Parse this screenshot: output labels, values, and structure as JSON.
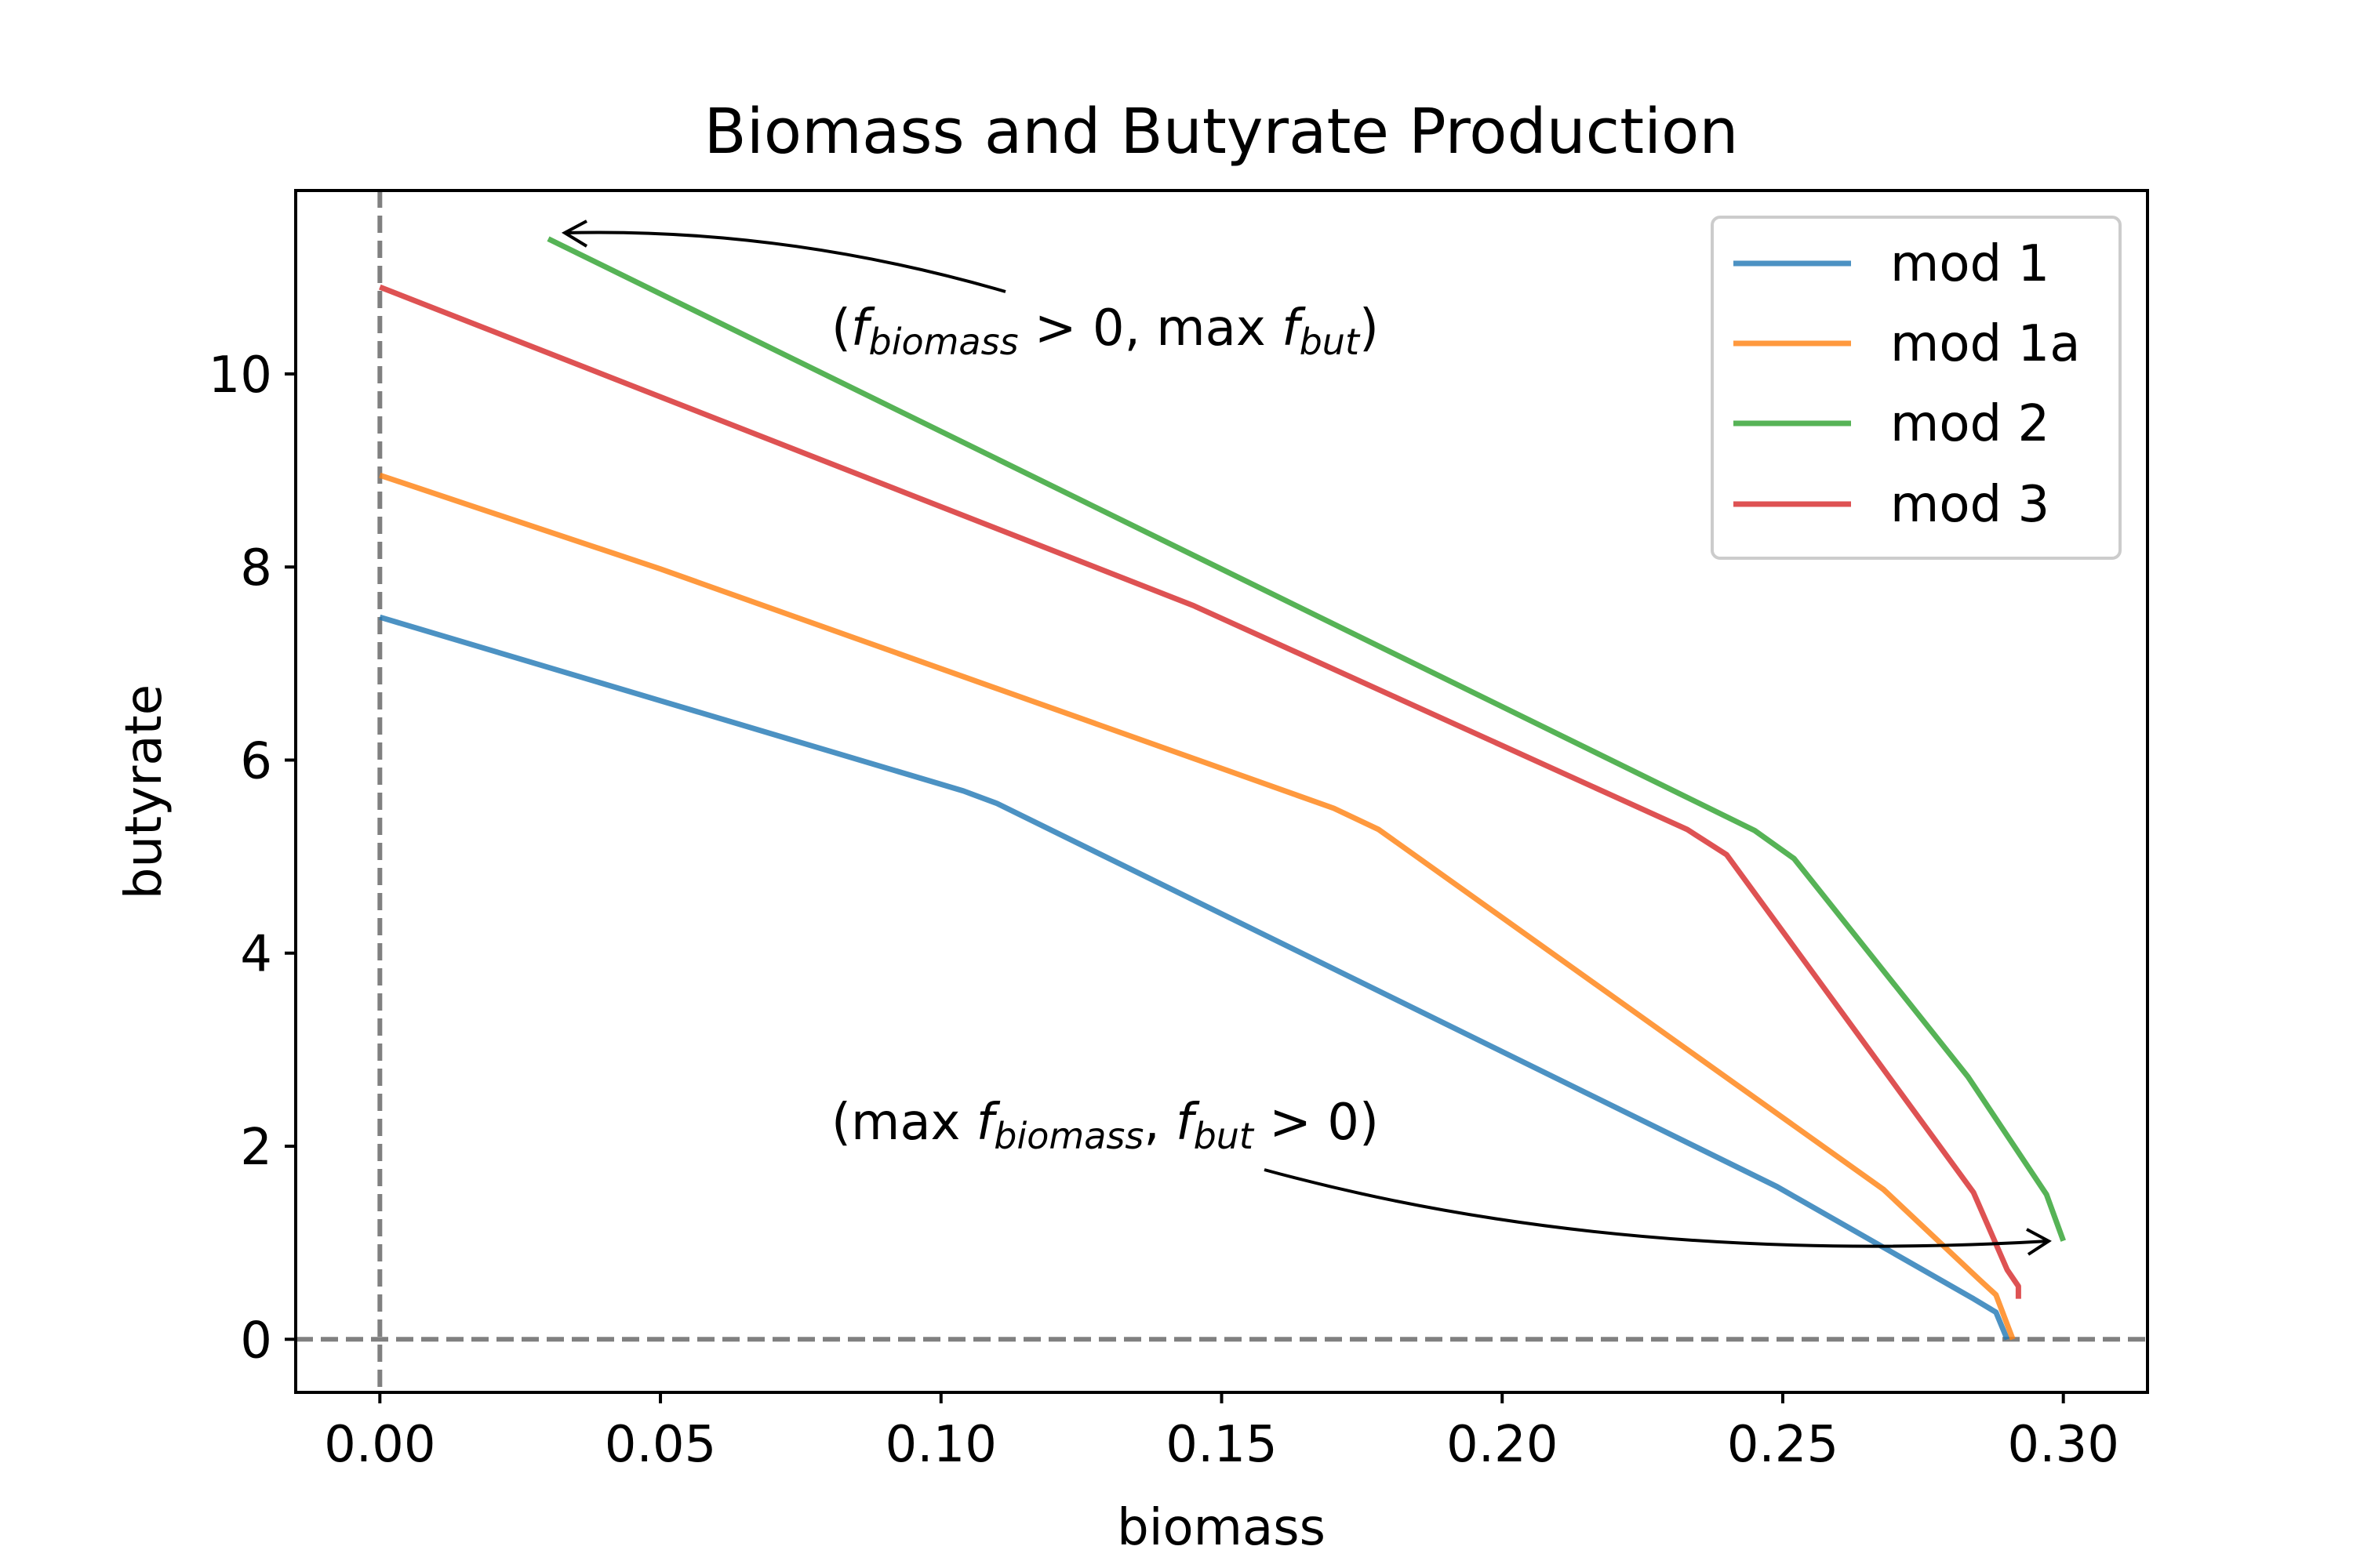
{
  "colors": {
    "mod1": "#1f77b4",
    "mod1a": "#ff7f0e",
    "mod2": "#2ca02c",
    "mod3": "#d62728",
    "reference": "#808080",
    "annotation": "#000000"
  },
  "chart_data": {
    "type": "line",
    "title": "Biomass and Butyrate Production",
    "xlabel": "biomass",
    "ylabel": "butyrate",
    "xlim": [
      -0.015,
      0.315
    ],
    "ylim": [
      -0.55,
      11.9
    ],
    "x_ticks": [
      0.0,
      0.05,
      0.1,
      0.15,
      0.2,
      0.25,
      0.3
    ],
    "x_tick_labels": [
      "0.00",
      "0.05",
      "0.10",
      "0.15",
      "0.20",
      "0.25",
      "0.30"
    ],
    "y_ticks": [
      0,
      2,
      4,
      6,
      8,
      10
    ],
    "y_tick_labels": [
      "0",
      "2",
      "4",
      "6",
      "8",
      "10"
    ],
    "grid": false,
    "legend_position": "top-right",
    "reference_lines": [
      {
        "orientation": "vertical",
        "value": 0.0,
        "style": "dashed"
      },
      {
        "orientation": "horizontal",
        "value": 0.0,
        "style": "dashed"
      }
    ],
    "series": [
      {
        "name": "mod 1",
        "color_key": "mod1",
        "x": [
          0.0,
          0.104,
          0.11,
          0.249,
          0.284,
          0.288,
          0.29
        ],
        "y": [
          7.48,
          5.68,
          5.55,
          1.58,
          0.42,
          0.28,
          0.0
        ]
      },
      {
        "name": "mod 1a",
        "color_key": "mod1a",
        "x": [
          0.0,
          0.05,
          0.17,
          0.178,
          0.268,
          0.285,
          0.288,
          0.291
        ],
        "y": [
          8.95,
          7.98,
          5.5,
          5.28,
          1.55,
          0.62,
          0.46,
          0.0
        ]
      },
      {
        "name": "mod 2",
        "color_key": "mod2",
        "x": [
          0.03,
          0.245,
          0.252,
          0.283,
          0.297,
          0.3
        ],
        "y": [
          11.4,
          5.27,
          4.98,
          2.72,
          1.5,
          1.02
        ]
      },
      {
        "name": "mod 3",
        "color_key": "mod3",
        "x": [
          0.0,
          0.145,
          0.233,
          0.24,
          0.284,
          0.29,
          0.292,
          0.292
        ],
        "y": [
          10.9,
          7.6,
          5.28,
          5.02,
          1.52,
          0.72,
          0.55,
          0.42
        ]
      }
    ],
    "annotations": [
      {
        "name": "annotation-max-but",
        "parts": [
          "(",
          "f",
          "biomass",
          " > 0,  max ",
          "f",
          "but",
          ")"
        ]
      },
      {
        "name": "annotation-max-biomass",
        "parts": [
          "(max ",
          "f",
          "biomass",
          ",  ",
          "f",
          "but",
          " > 0)"
        ]
      }
    ]
  }
}
